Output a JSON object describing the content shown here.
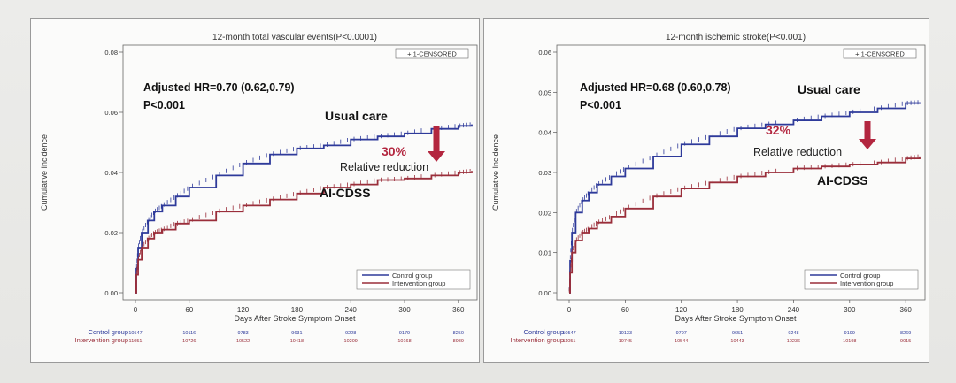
{
  "colors": {
    "control": "#2e3a9a",
    "intervention": "#9a2e3a",
    "accent": "#b3263f",
    "background": "#fbfbfa"
  },
  "chart_data": [
    {
      "type": "line",
      "title": "12-month total vascular events(P<0.0001)",
      "xlabel": "Days After Stroke Symptom Onset",
      "ylabel": "Cumulative Incidence",
      "xlim": [
        0,
        375
      ],
      "ylim": [
        0,
        0.08
      ],
      "xticks": [
        0,
        60,
        120,
        180,
        240,
        300,
        360
      ],
      "yticks": [
        "0.00",
        "0.02",
        "0.04",
        "0.06",
        "0.08"
      ],
      "censored_label": "+ 1-CENSORED",
      "hr_text": "Adjusted HR=0.70 (0.62,0.79)",
      "p_text": "P<0.001",
      "usual_care_label": "Usual care",
      "reduction_pct": "30%",
      "reduction_text": "Relative reduction",
      "aicdss_label": "AI-CDSS",
      "series": [
        {
          "name": "Control group",
          "x": [
            0,
            1,
            3,
            7,
            14,
            21,
            30,
            45,
            60,
            90,
            120,
            150,
            180,
            210,
            240,
            270,
            300,
            330,
            360,
            375
          ],
          "y": [
            0.0,
            0.008,
            0.015,
            0.02,
            0.024,
            0.027,
            0.029,
            0.032,
            0.035,
            0.039,
            0.043,
            0.046,
            0.048,
            0.049,
            0.051,
            0.052,
            0.053,
            0.0545,
            0.0555,
            0.056
          ]
        },
        {
          "name": "Intervention group",
          "x": [
            0,
            1,
            3,
            7,
            14,
            21,
            30,
            45,
            60,
            90,
            120,
            150,
            180,
            210,
            240,
            270,
            300,
            330,
            360,
            375
          ],
          "y": [
            0.0,
            0.006,
            0.011,
            0.015,
            0.018,
            0.02,
            0.021,
            0.023,
            0.024,
            0.027,
            0.029,
            0.031,
            0.033,
            0.035,
            0.036,
            0.0375,
            0.038,
            0.039,
            0.04,
            0.0405
          ]
        }
      ],
      "risk_table": {
        "Control group": [
          "10547",
          "10116",
          "9783",
          "9631",
          "9228",
          "9179",
          "8250"
        ],
        "Intervention group": [
          "11051",
          "10726",
          "10522",
          "10418",
          "10209",
          "10168",
          "8989"
        ]
      }
    },
    {
      "type": "line",
      "title": "12-month  ischemic stroke(P<0.001)",
      "xlabel": "Days After Stroke Symptom Onset",
      "ylabel": "Cumulative Incidence",
      "xlim": [
        0,
        375
      ],
      "ylim": [
        0,
        0.06
      ],
      "xticks": [
        0,
        60,
        120,
        180,
        240,
        300,
        360
      ],
      "yticks": [
        "0.00",
        "0.01",
        "0.02",
        "0.03",
        "0.04",
        "0.05",
        "0.06"
      ],
      "censored_label": "+ 1-CENSORED",
      "hr_text": "Adjusted HR=0.68 (0.60,0.78)",
      "p_text": "P<0.001",
      "usual_care_label": "Usual care",
      "reduction_pct": "32%",
      "reduction_text": "Relative reduction",
      "aicdss_label": "AI-CDSS",
      "series": [
        {
          "name": "Control group",
          "x": [
            0,
            1,
            3,
            7,
            14,
            21,
            30,
            45,
            60,
            90,
            120,
            150,
            180,
            210,
            240,
            270,
            300,
            330,
            360,
            375
          ],
          "y": [
            0.0,
            0.008,
            0.015,
            0.02,
            0.023,
            0.025,
            0.027,
            0.029,
            0.031,
            0.034,
            0.037,
            0.039,
            0.041,
            0.042,
            0.043,
            0.044,
            0.045,
            0.046,
            0.0473,
            0.0475
          ]
        },
        {
          "name": "Intervention group",
          "x": [
            0,
            1,
            3,
            7,
            14,
            21,
            30,
            45,
            60,
            90,
            120,
            150,
            180,
            210,
            240,
            270,
            300,
            330,
            360,
            375
          ],
          "y": [
            0.0,
            0.005,
            0.01,
            0.013,
            0.015,
            0.016,
            0.0175,
            0.019,
            0.021,
            0.024,
            0.026,
            0.0275,
            0.029,
            0.03,
            0.031,
            0.0315,
            0.032,
            0.0325,
            0.0335,
            0.034
          ]
        }
      ],
      "risk_table": {
        "Control group": [
          "10547",
          "10133",
          "9797",
          "9651",
          "9248",
          "9199",
          "8269"
        ],
        "Intervention group": [
          "11051",
          "10745",
          "10544",
          "10443",
          "10236",
          "10198",
          "9015"
        ]
      }
    }
  ]
}
